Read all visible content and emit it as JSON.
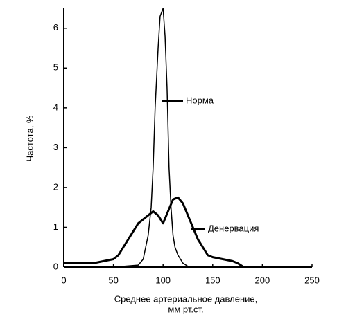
{
  "chart_data": {
    "type": "line",
    "y_label": "Частота, %",
    "x_label": [
      "Среднее артериальное давление,",
      "мм рт.ст."
    ],
    "xlim": [
      0,
      250
    ],
    "xticks": [
      0,
      50,
      100,
      150,
      200,
      250
    ],
    "ylim": [
      0,
      6.5
    ],
    "yticks": [
      0,
      1,
      2,
      3,
      4,
      5,
      6
    ],
    "series": [
      {
        "name": "Норма",
        "color": "#000",
        "width": 1.5,
        "x": [
          0,
          20,
          40,
          60,
          75,
          80,
          85,
          88,
          90,
          92,
          95,
          97,
          100,
          102,
          104,
          106,
          108,
          110,
          112,
          115,
          120,
          125,
          130,
          150,
          180
        ],
        "values": [
          0.02,
          0.02,
          0.02,
          0.02,
          0.05,
          0.2,
          0.8,
          1.5,
          2.5,
          4,
          5.5,
          6.3,
          6.5,
          5.8,
          4.5,
          2.5,
          1.5,
          0.8,
          0.5,
          0.3,
          0.1,
          0.02,
          0,
          0,
          0
        ]
      },
      {
        "name": "Денервация",
        "color": "#000",
        "width": 3,
        "x": [
          0,
          10,
          20,
          30,
          40,
          50,
          55,
          60,
          65,
          70,
          75,
          80,
          85,
          90,
          95,
          100,
          105,
          110,
          115,
          120,
          125,
          130,
          135,
          140,
          145,
          150,
          160,
          170,
          175,
          180
        ],
        "values": [
          0.1,
          0.1,
          0.1,
          0.1,
          0.15,
          0.2,
          0.3,
          0.5,
          0.7,
          0.9,
          1.1,
          1.2,
          1.3,
          1.4,
          1.3,
          1.1,
          1.4,
          1.7,
          1.75,
          1.6,
          1.3,
          1.0,
          0.7,
          0.5,
          0.3,
          0.25,
          0.2,
          0.15,
          0.1,
          0.02
        ]
      }
    ]
  }
}
